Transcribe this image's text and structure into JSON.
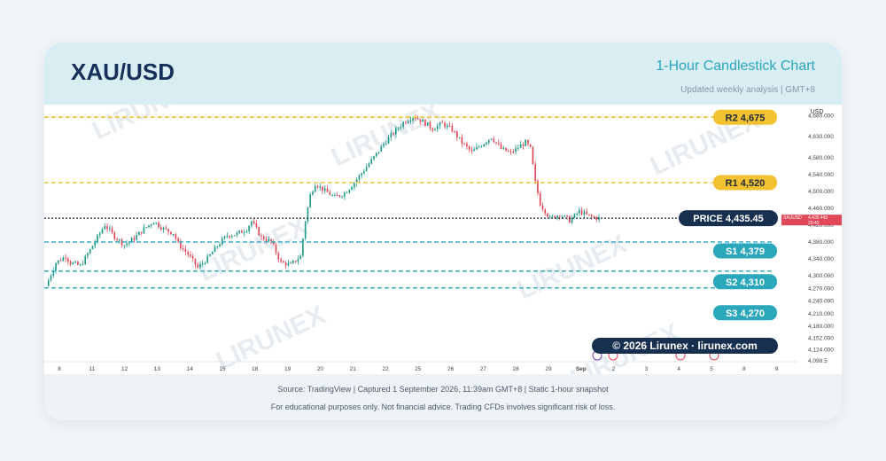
{
  "header": {
    "title": "XAU/USD",
    "subtitle": "1-Hour Candlestick Chart",
    "updated": "Updated weekly analysis | GMT+8"
  },
  "chart_data": {
    "type": "candlestick",
    "symbol": "XAUUSD",
    "currency_label": "USD",
    "ylim": [
      4095,
      4705
    ],
    "y_ticks": [
      4680,
      4630,
      4580,
      4540,
      4500,
      4460,
      4420,
      4380,
      4340,
      4300,
      4270,
      4240,
      4210,
      4180,
      4152,
      4124,
      4098.5
    ],
    "x_ticks": [
      "8",
      "11",
      "12",
      "13",
      "14",
      "15",
      "18",
      "19",
      "20",
      "21",
      "22",
      "25",
      "26",
      "27",
      "28",
      "29",
      "Sep",
      "2",
      "3",
      "4",
      "5",
      "8",
      "9"
    ],
    "price_path": [
      [
        0,
        4275
      ],
      [
        4,
        4330
      ],
      [
        8,
        4345
      ],
      [
        10,
        4330
      ],
      [
        14,
        4322
      ],
      [
        18,
        4360
      ],
      [
        22,
        4400
      ],
      [
        24,
        4420
      ],
      [
        28,
        4392
      ],
      [
        32,
        4372
      ],
      [
        36,
        4388
      ],
      [
        40,
        4410
      ],
      [
        44,
        4428
      ],
      [
        48,
        4410
      ],
      [
        52,
        4400
      ],
      [
        54,
        4375
      ],
      [
        58,
        4350
      ],
      [
        62,
        4318
      ],
      [
        66,
        4340
      ],
      [
        70,
        4370
      ],
      [
        74,
        4395
      ],
      [
        78,
        4398
      ],
      [
        82,
        4410
      ],
      [
        84,
        4428
      ],
      [
        88,
        4390
      ],
      [
        92,
        4380
      ],
      [
        96,
        4330
      ],
      [
        100,
        4325
      ],
      [
        104,
        4345
      ],
      [
        106,
        4430
      ],
      [
        108,
        4490
      ],
      [
        110,
        4518
      ],
      [
        114,
        4500
      ],
      [
        118,
        4485
      ],
      [
        122,
        4495
      ],
      [
        126,
        4520
      ],
      [
        130,
        4550
      ],
      [
        134,
        4580
      ],
      [
        138,
        4612
      ],
      [
        142,
        4638
      ],
      [
        146,
        4662
      ],
      [
        150,
        4678
      ],
      [
        154,
        4665
      ],
      [
        158,
        4648
      ],
      [
        162,
        4660
      ],
      [
        166,
        4645
      ],
      [
        170,
        4615
      ],
      [
        174,
        4592
      ],
      [
        178,
        4610
      ],
      [
        182,
        4628
      ],
      [
        186,
        4600
      ],
      [
        190,
        4590
      ],
      [
        194,
        4608
      ],
      [
        196,
        4615
      ],
      [
        198,
        4600
      ],
      [
        200,
        4520
      ],
      [
        202,
        4470
      ],
      [
        206,
        4435
      ],
      [
        210,
        4445
      ],
      [
        214,
        4430
      ],
      [
        218,
        4452
      ],
      [
        222,
        4440
      ],
      [
        226,
        4435
      ]
    ],
    "current_price": "4,435.45",
    "current_price_value": 4435.45,
    "axis_price_tag": {
      "symbol": "XAUUSD",
      "price": "4,435.445",
      "time": "20:42"
    },
    "levels": [
      {
        "name": "R2",
        "label": "R2  4,675",
        "value": 4675,
        "kind": "resistance",
        "color": "#f2c230"
      },
      {
        "name": "R1",
        "label": "R1  4,520",
        "value": 4520,
        "kind": "resistance",
        "color": "#f2c230"
      },
      {
        "name": "S1",
        "label": "S1  4,379",
        "value": 4379,
        "kind": "support",
        "color": "#2ba7bc"
      },
      {
        "name": "S2",
        "label": "S2  4,310",
        "value": 4310,
        "kind": "support",
        "color": "#2ba7bc"
      },
      {
        "name": "S3",
        "label": "S3  4,270",
        "value": 4270,
        "kind": "support",
        "color": "#2ba7bc"
      }
    ],
    "price_label_prefix": "PRICE",
    "bull_color": "#1e9a8a",
    "bear_color": "#e0485a",
    "watermark": "LIRUNEX",
    "copyright": "© 2026 Lirunex · lirunex.com"
  },
  "footer": {
    "source": "Source: TradingView | Captured 1 September 2026, 11:39am GMT+8 | Static 1-hour snapshot",
    "disclaimer": "For educational purposes only. Not financial advice. Trading CFDs involves significant risk of loss."
  }
}
